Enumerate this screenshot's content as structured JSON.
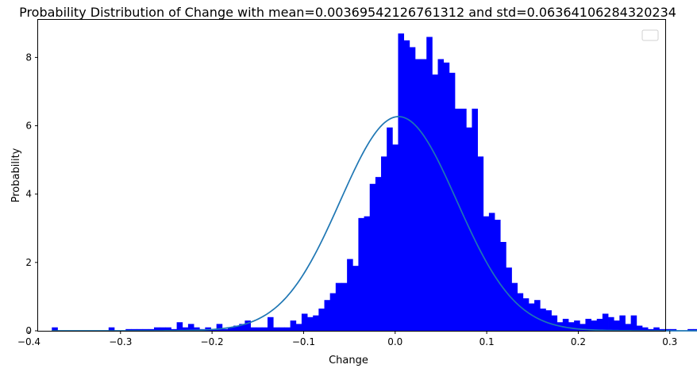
{
  "chart_data": {
    "type": "bar",
    "title": "Probability Distribution of Change with mean=0.00369542126761312 and std=0.06364106284320234",
    "xlabel": "Change",
    "ylabel": "Probability",
    "xlim": [
      -0.39,
      0.295
    ],
    "ylim": [
      0,
      9.1
    ],
    "x_ticks": [
      -0.4,
      -0.3,
      -0.2,
      -0.1,
      0.0,
      0.1,
      0.2,
      0.3
    ],
    "x_tick_labels": [
      "−0.4",
      "−0.3",
      "−0.2",
      "−0.1",
      "0.0",
      "0.1",
      "0.2",
      "0.3"
    ],
    "y_ticks": [
      0,
      2,
      4,
      6,
      8
    ],
    "y_tick_labels": [
      "0",
      "2",
      "4",
      "6",
      "8"
    ],
    "grid": false,
    "legend": {
      "placement": "top-right",
      "entries": []
    },
    "mean": 0.00369542126761312,
    "std": 0.06364106284320234,
    "bar_color": "#0000ff",
    "curve_color": "#1f77b4",
    "histogram": {
      "bin_start": -0.375,
      "bin_width": 0.0062,
      "values": [
        0.1,
        0,
        0,
        0,
        0,
        0,
        0,
        0,
        0,
        0,
        0.1,
        0,
        0,
        0.05,
        0.05,
        0.05,
        0.05,
        0.05,
        0.1,
        0.1,
        0.1,
        0.05,
        0.25,
        0.1,
        0.2,
        0.1,
        0.05,
        0.1,
        0.05,
        0.2,
        0.05,
        0.1,
        0.15,
        0.2,
        0.3,
        0.1,
        0.1,
        0.1,
        0.4,
        0.1,
        0.1,
        0.1,
        0.3,
        0.2,
        0.5,
        0.4,
        0.45,
        0.65,
        0.9,
        1.1,
        1.4,
        1.4,
        2.1,
        1.9,
        3.3,
        3.35,
        4.3,
        4.5,
        5.1,
        5.95,
        5.45,
        8.7,
        8.5,
        8.3,
        7.95,
        7.95,
        8.6,
        7.5,
        7.95,
        7.85,
        7.55,
        6.5,
        6.5,
        5.95,
        6.5,
        5.1,
        3.35,
        3.45,
        3.25,
        2.6,
        1.85,
        1.4,
        1.1,
        0.95,
        0.8,
        0.9,
        0.65,
        0.6,
        0.45,
        0.25,
        0.35,
        0.25,
        0.3,
        0.2,
        0.35,
        0.3,
        0.35,
        0.5,
        0.4,
        0.3,
        0.45,
        0.2,
        0.45,
        0.15,
        0.1,
        0.05,
        0.1,
        0.05,
        0.05,
        0.05,
        0,
        0,
        0.05,
        0.05,
        0.15
      ]
    }
  }
}
